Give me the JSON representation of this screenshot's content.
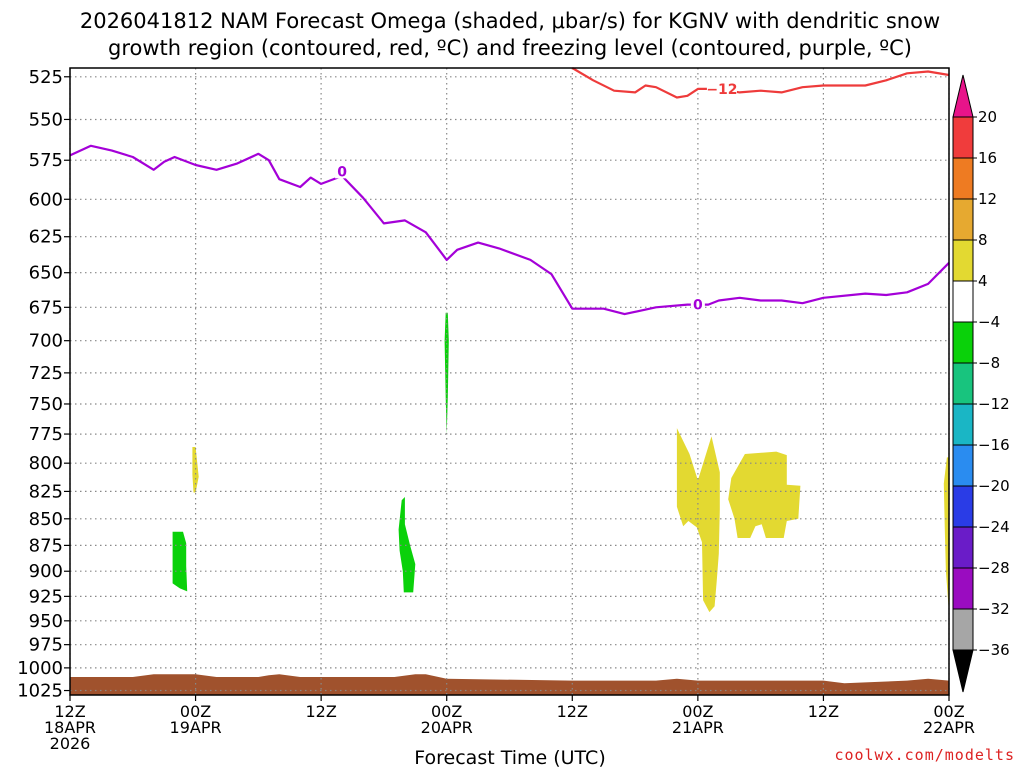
{
  "title_line1": "2026041812 NAM Forecast Omega (shaded, μbar/s) for KGNV with dendritic snow",
  "title_line2": "growth region (contoured, red, ºC) and freezing level (contoured, purple, ºC)",
  "xlabel": "Forecast Time (UTC)",
  "credit": "coolwx.com/modelts",
  "colors": {
    "freezing_contour": "#a400d8",
    "dgz_contour": "#ee3b3b",
    "terrain": "#a0522d",
    "grid": "#888888"
  },
  "chart_data": {
    "type": "contour",
    "x_axis": {
      "unit": "hours since 2026-04-18 12Z",
      "range": [
        0,
        84
      ],
      "ticks": [
        {
          "hour": 0,
          "line1": "12Z",
          "line2": "18APR",
          "line3": "2026"
        },
        {
          "hour": 12,
          "line1": "00Z",
          "line2": "19APR",
          "line3": ""
        },
        {
          "hour": 24,
          "line1": "12Z",
          "line2": "",
          "line3": ""
        },
        {
          "hour": 36,
          "line1": "00Z",
          "line2": "20APR",
          "line3": ""
        },
        {
          "hour": 48,
          "line1": "12Z",
          "line2": "",
          "line3": ""
        },
        {
          "hour": 60,
          "line1": "00Z",
          "line2": "21APR",
          "line3": ""
        },
        {
          "hour": 72,
          "line1": "12Z",
          "line2": "",
          "line3": ""
        },
        {
          "hour": 84,
          "line1": "00Z",
          "line2": "22APR",
          "line3": ""
        }
      ]
    },
    "y_axis": {
      "unit": "hPa",
      "scale": "log",
      "range": [
        1030,
        520
      ],
      "ticks": [
        525,
        550,
        575,
        600,
        625,
        650,
        675,
        700,
        725,
        750,
        775,
        800,
        825,
        850,
        875,
        900,
        925,
        950,
        975,
        1000,
        1025
      ]
    },
    "colorbar": {
      "labels": [
        "20",
        "16",
        "12",
        "8",
        "4",
        "−4",
        "−8",
        "−12",
        "−16",
        "−20",
        "−24",
        "−28",
        "−32",
        "−36"
      ],
      "bins": [
        {
          "range": "16 to 20",
          "color": "#f03c3c"
        },
        {
          "range": "12 to 16",
          "color": "#ee7b22"
        },
        {
          "range": "8 to 12",
          "color": "#e6a930"
        },
        {
          "range": "4 to 8",
          "color": "#e3d931"
        },
        {
          "range": "−4 to 4",
          "color": "#ffffff"
        },
        {
          "range": "−8 to −4",
          "color": "#0ad10a"
        },
        {
          "range": "−12 to −8",
          "color": "#18c47e"
        },
        {
          "range": "−16 to −12",
          "color": "#1ab6c5"
        },
        {
          "range": "−20 to −16",
          "color": "#2a8cf0"
        },
        {
          "range": "−24 to −20",
          "color": "#2a3ce6"
        },
        {
          "range": "−28 to −24",
          "color": "#6a1cc8"
        },
        {
          "range": "−32 to −28",
          "color": "#9a0cc0"
        },
        {
          "range": "−36 to −32",
          "color": "#a6a6a6"
        }
      ],
      "over_color": "#e8148a",
      "under_color": "#000000"
    },
    "freezing_level": {
      "label": "0",
      "points": [
        [
          0,
          572
        ],
        [
          2,
          566
        ],
        [
          4,
          569
        ],
        [
          6,
          573
        ],
        [
          8,
          581
        ],
        [
          9,
          576
        ],
        [
          10,
          573
        ],
        [
          12,
          578
        ],
        [
          14,
          581
        ],
        [
          16,
          577
        ],
        [
          18,
          571
        ],
        [
          19,
          575
        ],
        [
          20,
          587
        ],
        [
          22,
          592
        ],
        [
          23,
          586
        ],
        [
          24,
          590
        ],
        [
          26,
          585
        ],
        [
          28,
          599
        ],
        [
          30,
          616
        ],
        [
          32,
          614
        ],
        [
          34,
          622
        ],
        [
          36,
          641
        ],
        [
          37,
          634
        ],
        [
          39,
          629
        ],
        [
          41,
          633
        ],
        [
          44,
          641
        ],
        [
          46,
          651
        ],
        [
          48,
          676
        ],
        [
          51,
          676
        ],
        [
          53,
          680
        ],
        [
          56,
          675
        ],
        [
          59,
          673
        ],
        [
          61,
          673
        ],
        [
          62,
          670
        ],
        [
          64,
          668
        ],
        [
          66,
          670
        ],
        [
          68,
          670
        ],
        [
          70,
          672
        ],
        [
          72,
          668
        ],
        [
          76,
          665
        ],
        [
          78,
          666
        ],
        [
          80,
          664
        ],
        [
          82,
          658
        ],
        [
          84,
          643
        ]
      ]
    },
    "dgz_minus12": {
      "label": "−12",
      "points": [
        [
          48,
          520
        ],
        [
          50,
          527
        ],
        [
          52,
          533
        ],
        [
          54,
          534
        ],
        [
          55,
          530
        ],
        [
          56,
          531
        ],
        [
          58,
          537
        ],
        [
          59,
          536
        ],
        [
          60,
          532
        ],
        [
          62,
          532
        ],
        [
          64,
          534
        ],
        [
          66,
          533
        ],
        [
          68,
          534
        ],
        [
          70,
          531
        ],
        [
          72,
          530
        ],
        [
          76,
          530
        ],
        [
          78,
          527
        ],
        [
          80,
          523
        ],
        [
          82,
          522
        ],
        [
          84,
          524
        ]
      ]
    },
    "omega_regions": [
      {
        "color": "#0ad10a",
        "points": [
          [
            9.8,
            862
          ],
          [
            10.8,
            862
          ],
          [
            11.1,
            873
          ],
          [
            11.1,
            895
          ],
          [
            11.2,
            920
          ],
          [
            10.5,
            917
          ],
          [
            9.8,
            912
          ]
        ]
      },
      {
        "color": "#0ad10a",
        "points": [
          [
            35.9,
            679
          ],
          [
            36.1,
            679
          ],
          [
            36.2,
            700
          ],
          [
            36.1,
            745
          ],
          [
            36.0,
            775
          ],
          [
            35.9,
            745
          ],
          [
            35.8,
            700
          ]
        ]
      },
      {
        "color": "#0ad10a",
        "points": [
          [
            31.7,
            833
          ],
          [
            32.0,
            830
          ],
          [
            32.0,
            855
          ],
          [
            32.5,
            875
          ],
          [
            33.0,
            893
          ],
          [
            32.8,
            921
          ],
          [
            31.9,
            921
          ],
          [
            31.8,
            900
          ],
          [
            31.5,
            880
          ],
          [
            31.4,
            860
          ]
        ]
      },
      {
        "color": "#e3d931",
        "points": [
          [
            11.7,
            786
          ],
          [
            12.0,
            786
          ],
          [
            12.3,
            812
          ],
          [
            12.0,
            826
          ],
          [
            11.8,
            826
          ],
          [
            11.7,
            810
          ]
        ]
      },
      {
        "color": "#e3d931",
        "points": [
          [
            58,
            770
          ],
          [
            59.2,
            792
          ],
          [
            60.0,
            815
          ],
          [
            61.3,
            777
          ],
          [
            62.1,
            808
          ],
          [
            62.1,
            842
          ],
          [
            62.0,
            883
          ],
          [
            61.8,
            910
          ],
          [
            61.6,
            935
          ],
          [
            61.1,
            941
          ],
          [
            60.5,
            929
          ],
          [
            60.4,
            872
          ],
          [
            59.9,
            858
          ],
          [
            59.1,
            852
          ],
          [
            58.6,
            857
          ],
          [
            58.0,
            839
          ]
        ]
      },
      {
        "color": "#e3d931",
        "points": [
          [
            64.5,
            792
          ],
          [
            67.5,
            790
          ],
          [
            68.5,
            793
          ],
          [
            68.5,
            819
          ],
          [
            69.8,
            820
          ],
          [
            69.6,
            850
          ],
          [
            68.5,
            852
          ],
          [
            68.2,
            868
          ],
          [
            66.5,
            868
          ],
          [
            66.1,
            855
          ],
          [
            65.5,
            857
          ],
          [
            65.0,
            868
          ],
          [
            63.8,
            868
          ],
          [
            63.5,
            850
          ],
          [
            62.9,
            832
          ],
          [
            63.2,
            813
          ]
        ]
      },
      {
        "color": "#e3d931",
        "points": [
          [
            83.8,
            795
          ],
          [
            84,
            795
          ],
          [
            84,
            942
          ],
          [
            83.7,
            900
          ],
          [
            83.6,
            860
          ],
          [
            83.5,
            818
          ]
        ]
      }
    ],
    "terrain": {
      "color": "#a0522d",
      "top_points": [
        [
          0,
          1010
        ],
        [
          6,
          1010
        ],
        [
          8,
          1007
        ],
        [
          12,
          1007
        ],
        [
          14,
          1010
        ],
        [
          18,
          1010
        ],
        [
          19,
          1008
        ],
        [
          20,
          1007
        ],
        [
          22,
          1010
        ],
        [
          31,
          1010
        ],
        [
          33,
          1007
        ],
        [
          34,
          1007
        ],
        [
          36,
          1012
        ],
        [
          48,
          1014
        ],
        [
          50,
          1014
        ],
        [
          56,
          1014
        ],
        [
          58,
          1012
        ],
        [
          60,
          1014
        ],
        [
          72,
          1014
        ],
        [
          74,
          1017
        ],
        [
          76,
          1016
        ],
        [
          80,
          1014
        ],
        [
          82,
          1012
        ],
        [
          84,
          1014
        ]
      ]
    }
  }
}
